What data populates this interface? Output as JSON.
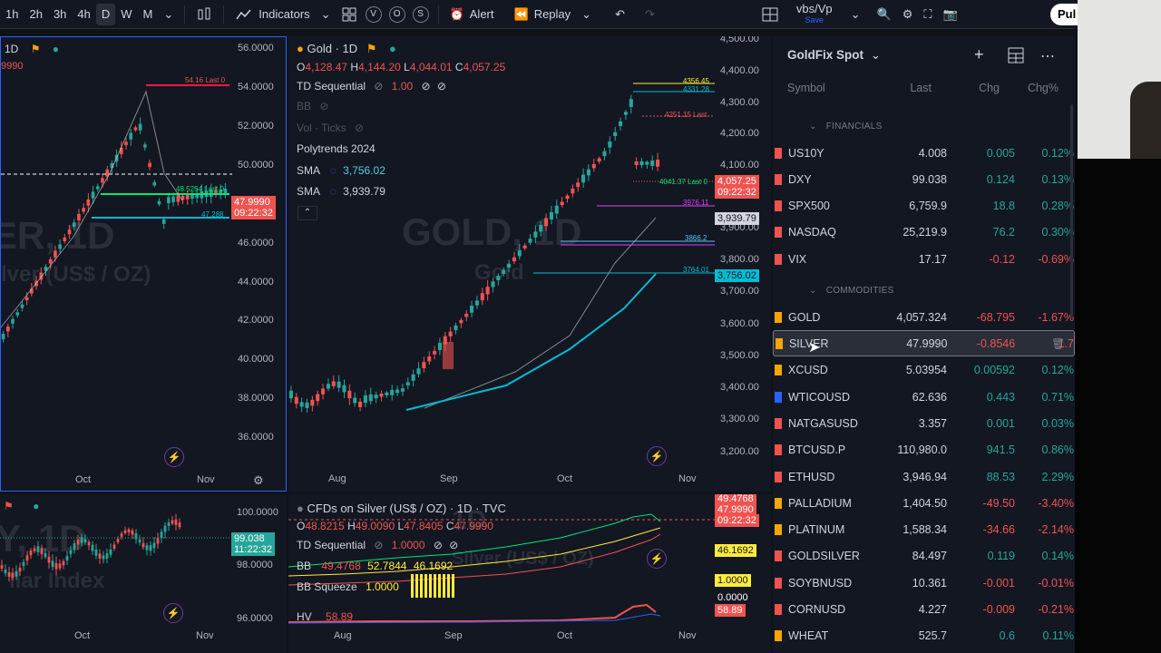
{
  "toolbar": {
    "intervals": [
      "1h",
      "2h",
      "3h",
      "4h",
      "D",
      "W",
      "M"
    ],
    "indicators": "Indicators",
    "alert": "Alert",
    "replay": "Replay",
    "layout_name": "vbs/Vp",
    "layout_sub": "Save",
    "publish": "Pul",
    "circles": [
      "V",
      "O",
      "S"
    ]
  },
  "pane_tl": {
    "title": "1D",
    "price_labels": [
      "56.0000",
      "54.0000",
      "52.0000",
      "50.0000",
      "48.0000",
      "46.0000",
      "44.0000",
      "42.0000",
      "40.0000",
      "38.0000",
      "36.0000"
    ],
    "last_price": "47.9990",
    "countdown": "09:22:32",
    "side_value": "9990",
    "watermark": "ER, 1D",
    "sub_watermark": "lver (US$ / OZ)",
    "line_labels": [
      "54.16 Last 0",
      "48.5254 Last 0",
      "47.288"
    ],
    "time_labels": [
      "Oct",
      "Nov"
    ]
  },
  "pane_tc": {
    "symbol": "Gold · 1D",
    "ohlc": {
      "o": "O",
      "o_val": "4,128.47",
      "h": "H",
      "h_val": "4,144.20",
      "l": "L",
      "l_val": "4,044.01",
      "c": "C",
      "c_val": "4,057.25"
    },
    "td": "TD Sequential",
    "td_val": "1.00",
    "bb": "BB",
    "vol": "Vol · Ticks",
    "polytrends": "Polytrends 2024",
    "sma1": "SMA",
    "sma1_val": "3,756.02",
    "sma2": "SMA",
    "sma2_val": "3,939.79",
    "watermark": "GOLD, 1D",
    "sub_watermark": "Gold",
    "price_labels": [
      "4,500.00",
      "4,400.00",
      "4,300.00",
      "4,200.00",
      "4,100.00",
      "3,900.00",
      "3,800.00",
      "3,700.00",
      "3,600.00",
      "3,500.00",
      "3,400.00",
      "3,300.00",
      "3,200.00"
    ],
    "last_price": "4,057.25",
    "countdown": "09:22:32",
    "sma2_tag": "3,939.79",
    "sma1_tag": "3,756.02",
    "line_labels": [
      "4356.45",
      "4331.28",
      "4251.15 Last",
      "4041.37 Last 0",
      "3976.11",
      "3866.2",
      "3764.01"
    ],
    "time_labels": [
      "Aug",
      "Sep",
      "Oct",
      "Nov"
    ]
  },
  "pane_bl": {
    "price_labels": [
      "100.0000",
      "98.0000",
      "96.0000"
    ],
    "last_price": "99.038",
    "countdown": "11:22:32",
    "watermark": "Y, 1D",
    "sub_watermark": "llar Index",
    "time_labels": [
      "Oct",
      "Nov"
    ]
  },
  "pane_bc": {
    "title": "CFDs on Silver (US$ / OZ) · 1D · TVC",
    "ohlc": {
      "o": "O",
      "o_val": "48.8215",
      "h": "H",
      "h_val": "49.0090",
      "l": "L",
      "l_val": "47.8405",
      "c": "C",
      "c_val": "47.9990"
    },
    "td": "TD Sequential",
    "td_val": "1.0000",
    "bb": "BB",
    "bb_vals": [
      "49.4768",
      "52.7844",
      "46.1692"
    ],
    "bb_squeeze": "BB Squeeze",
    "bb_squeeze_val": "1.0000",
    "hv": "HV",
    "hv_val": "58.89",
    "tags": [
      "49.4768",
      "47.9990",
      "09:22:32",
      "46.1692",
      "1.0000",
      "0.0000",
      "58.89"
    ],
    "time_labels": [
      "Aug",
      "Sep",
      "Oct",
      "Nov"
    ]
  },
  "watchlist": {
    "title": "GoldFix Spot",
    "headers": {
      "symbol": "Symbol",
      "last": "Last",
      "chg": "Chg",
      "pct": "Chg%"
    },
    "sections": [
      "FINANCIALS",
      "COMMODITIES"
    ],
    "rows": [
      {
        "sym": "US10Y",
        "last": "4.008",
        "chg": "0.005",
        "pct": "0.12%",
        "dir": "up",
        "flag": "#ef5350"
      },
      {
        "sym": "DXY",
        "last": "99.038",
        "chg": "0.124",
        "pct": "0.13%",
        "dir": "up",
        "flag": "#ef5350"
      },
      {
        "sym": "SPX500",
        "last": "6,759.9",
        "chg": "18.8",
        "pct": "0.28%",
        "dir": "up",
        "flag": "#ef5350"
      },
      {
        "sym": "NASDAQ",
        "last": "25,219.9",
        "chg": "76.2",
        "pct": "0.30%",
        "dir": "up",
        "flag": "#ef5350"
      },
      {
        "sym": "VIX",
        "last": "17.17",
        "chg": "-0.12",
        "pct": "-0.69%",
        "dir": "down",
        "flag": "#ef5350"
      },
      {
        "sym": "GOLD",
        "last": "4,057.324",
        "chg": "-68.795",
        "pct": "-1.67%",
        "dir": "down",
        "flag": "#f7a600"
      },
      {
        "sym": "SILVER",
        "last": "47.9990",
        "chg": "-0.8546",
        "pct": "-1.7",
        "dir": "down",
        "flag": "#f7a600"
      },
      {
        "sym": "XCUSD",
        "last": "5.03954",
        "chg": "0.00592",
        "pct": "0.12%",
        "dir": "up",
        "flag": "#f7a600"
      },
      {
        "sym": "WTICOUSD",
        "last": "62.636",
        "chg": "0.443",
        "pct": "0.71%",
        "dir": "up",
        "flag": "#2962ff"
      },
      {
        "sym": "NATGASUSD",
        "last": "3.357",
        "chg": "0.001",
        "pct": "0.03%",
        "dir": "up",
        "flag": "#ef5350"
      },
      {
        "sym": "BTCUSD.P",
        "last": "110,980.0",
        "chg": "941.5",
        "pct": "0.86%",
        "dir": "up",
        "flag": "#ef5350"
      },
      {
        "sym": "ETHUSD",
        "last": "3,946.94",
        "chg": "88.53",
        "pct": "2.29%",
        "dir": "up",
        "flag": "#ef5350"
      },
      {
        "sym": "PALLADIUM",
        "last": "1,404.50",
        "chg": "-49.50",
        "pct": "-3.40%",
        "dir": "down",
        "flag": "#f7a600"
      },
      {
        "sym": "PLATINUM",
        "last": "1,588.34",
        "chg": "-34.66",
        "pct": "-2.14%",
        "dir": "down",
        "flag": "#f7a600"
      },
      {
        "sym": "GOLDSILVER",
        "last": "84.497",
        "chg": "0.119",
        "pct": "0.14%",
        "dir": "up",
        "flag": "#ef5350"
      },
      {
        "sym": "SOYBNUSD",
        "last": "10.361",
        "chg": "-0.001",
        "pct": "-0.01%",
        "dir": "down",
        "flag": "#ef5350"
      },
      {
        "sym": "CORNUSD",
        "last": "4.227",
        "chg": "-0.009",
        "pct": "-0.21%",
        "dir": "down",
        "flag": "#ef5350"
      },
      {
        "sym": "WHEAT",
        "last": "525.7",
        "chg": "0.6",
        "pct": "0.11%",
        "dir": "up",
        "flag": "#f7a600"
      }
    ]
  },
  "colors": {
    "up": "#26a69a",
    "down": "#ef5350",
    "accent": "#2962ff",
    "bg": "#131722"
  }
}
